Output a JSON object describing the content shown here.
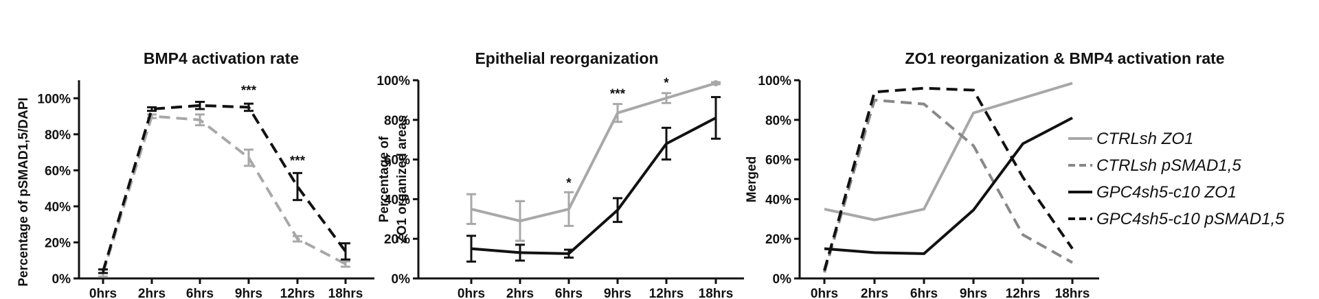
{
  "chart_data": [
    {
      "type": "line",
      "title": "BMP4 activation rate",
      "ylabel": "Percentage of pSMAD1,5/DAPI",
      "categories": [
        "0hrs",
        "2hrs",
        "6hrs",
        "9hrs",
        "12hrs",
        "18hrs"
      ],
      "ylim": [
        0,
        1.1
      ],
      "yticks": [
        "0%",
        "20%",
        "40%",
        "60%",
        "80%",
        "100%"
      ],
      "grid": false,
      "series": [
        {
          "values": [
            0.03,
            0.9,
            0.88,
            0.67,
            0.22,
            0.08
          ],
          "errors": [
            0.02,
            0.01,
            0.03,
            0.045,
            0.015,
            0.015
          ],
          "color": "#a8a8a8",
          "dash": true
        },
        {
          "values": [
            0.04,
            0.94,
            0.96,
            0.95,
            0.51,
            0.15
          ],
          "errors": [
            0.01,
            0.01,
            0.02,
            0.02,
            0.075,
            0.045
          ],
          "color": "#111111",
          "dash": true
        }
      ],
      "annotations": [
        {
          "x": "9hrs",
          "text": "***",
          "y": 1.02
        },
        {
          "x": "12hrs",
          "text": "***",
          "y": 0.63
        }
      ]
    },
    {
      "type": "line",
      "title": "Epithelial reorganization",
      "ylabel": "Percentage of ZO1 organized areas",
      "categories": [
        "0hrs",
        "2hrs",
        "6hrs",
        "9hrs",
        "12hrs",
        "18hrs"
      ],
      "ylim": [
        0,
        1.0
      ],
      "yticks": [
        "0%",
        "20%",
        "40%",
        "60%",
        "80%",
        "100%"
      ],
      "grid": false,
      "series": [
        {
          "values": [
            0.35,
            0.29,
            0.35,
            0.835,
            0.91,
            0.985
          ],
          "errors": [
            0.075,
            0.1,
            0.085,
            0.045,
            0.025,
            0.005
          ],
          "color": "#a8a8a8",
          "dash": false
        },
        {
          "values": [
            0.15,
            0.13,
            0.125,
            0.345,
            0.68,
            0.81
          ],
          "errors": [
            0.065,
            0.04,
            0.02,
            0.06,
            0.08,
            0.105
          ],
          "color": "#111111",
          "dash": false
        }
      ],
      "annotations": [
        {
          "x": "6hrs",
          "text": "*",
          "y": 0.46
        },
        {
          "x": "9hrs",
          "text": "***",
          "y": 0.91
        },
        {
          "x": "12hrs",
          "text": "*",
          "y": 0.965
        }
      ]
    },
    {
      "type": "line",
      "title": "ZO1 reorganization & BMP4 activation rate",
      "ylabel": "Merged",
      "categories": [
        "0hrs",
        "2hrs",
        "6hrs",
        "9hrs",
        "12hrs",
        "18hrs"
      ],
      "ylim": [
        0,
        1.0
      ],
      "yticks": [
        "0%",
        "20%",
        "40%",
        "60%",
        "80%",
        "100%"
      ],
      "grid": false,
      "legend": "right",
      "series": [
        {
          "name": "CTRLsh ZO1",
          "values": [
            0.35,
            0.295,
            0.35,
            0.835,
            0.91,
            0.985
          ],
          "color": "#a8a8a8",
          "dash": false
        },
        {
          "name": "CTRLsh pSMAD1,5",
          "values": [
            0.03,
            0.9,
            0.88,
            0.67,
            0.22,
            0.08
          ],
          "color": "#888888",
          "dash": true
        },
        {
          "name": "GPC4sh5-c10 ZO1",
          "values": [
            0.15,
            0.13,
            0.125,
            0.345,
            0.68,
            0.81
          ],
          "color": "#111111",
          "dash": false
        },
        {
          "name": "GPC4sh5-c10 pSMAD1,5",
          "values": [
            0.04,
            0.94,
            0.96,
            0.95,
            0.51,
            0.15
          ],
          "color": "#111111",
          "dash": true
        }
      ]
    }
  ]
}
